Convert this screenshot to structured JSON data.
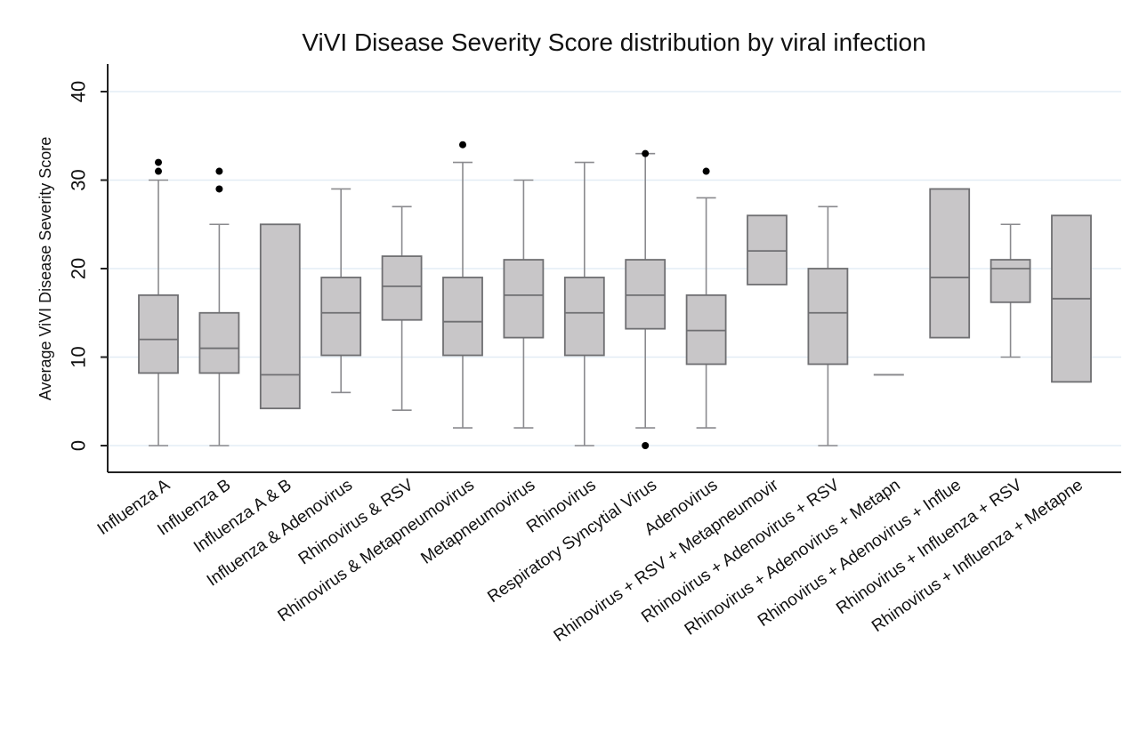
{
  "chart_data": {
    "type": "boxplot",
    "title": "ViVI Disease Severity Score distribution by viral infection",
    "xlabel": "",
    "ylabel": "Average ViVI Disease Severity Score",
    "ylim": [
      -3,
      43
    ],
    "yticks": [
      0,
      10,
      20,
      30,
      40
    ],
    "grid": true,
    "legend": "none",
    "colors": {
      "box_fill": "#c8c6c8",
      "box_stroke": "#6f6f72",
      "whisker": "#8a8a8e",
      "grid": "#e3edf5",
      "axis": "#222222",
      "outlier": "#000000"
    },
    "categories": [
      "Influenza A",
      "Influenza B",
      "Influenza A & B",
      "Influenza & Adenovirus",
      "Rhinovirus & RSV",
      "Rhinovirus & Metapneumovirus",
      "Metapneumovirus",
      "Rhinovirus",
      "Respiratory Syncytial Virus",
      "Adenovirus",
      "Rhinovirus + RSV + Metapneumovir",
      "Rhinovirus + Adenovirus + RSV",
      "Rhinovirus + Adenovirus + Metapn",
      "Rhinovirus + Adenovirus + Influe",
      "Rhinovirus + Influenza + RSV",
      "Rhinovirus + Influenza + Metapne"
    ],
    "boxes": [
      {
        "whisker_low": 0,
        "q1": 8.2,
        "median": 12,
        "q3": 17,
        "whisker_high": 30,
        "outliers": [
          31,
          32
        ]
      },
      {
        "whisker_low": 0,
        "q1": 8.2,
        "median": 11,
        "q3": 15,
        "whisker_high": 25,
        "outliers": [
          29,
          31
        ]
      },
      {
        "whisker_low": 4.2,
        "q1": 4.2,
        "median": 8,
        "q3": 25,
        "whisker_high": 25,
        "outliers": []
      },
      {
        "whisker_low": 6,
        "q1": 10.2,
        "median": 15,
        "q3": 19,
        "whisker_high": 29,
        "outliers": []
      },
      {
        "whisker_low": 4,
        "q1": 14.2,
        "median": 18,
        "q3": 21.4,
        "whisker_high": 27,
        "outliers": []
      },
      {
        "whisker_low": 2,
        "q1": 10.2,
        "median": 14,
        "q3": 19,
        "whisker_high": 32,
        "outliers": [
          34
        ]
      },
      {
        "whisker_low": 2,
        "q1": 12.2,
        "median": 17,
        "q3": 21,
        "whisker_high": 30,
        "outliers": []
      },
      {
        "whisker_low": 0,
        "q1": 10.2,
        "median": 15,
        "q3": 19,
        "whisker_high": 32,
        "outliers": []
      },
      {
        "whisker_low": 2,
        "q1": 13.2,
        "median": 17,
        "q3": 21,
        "whisker_high": 33,
        "outliers": [
          0,
          33
        ]
      },
      {
        "whisker_low": 2,
        "q1": 9.2,
        "median": 13,
        "q3": 17,
        "whisker_high": 28,
        "outliers": [
          31
        ]
      },
      {
        "whisker_low": 18.2,
        "q1": 18.2,
        "median": 22,
        "q3": 26,
        "whisker_high": 26,
        "outliers": []
      },
      {
        "whisker_low": 0,
        "q1": 9.2,
        "median": 15,
        "q3": 20,
        "whisker_high": 27,
        "outliers": []
      },
      {
        "whisker_low": 8,
        "q1": 8,
        "median": 8,
        "q3": 8,
        "whisker_high": 8,
        "outliers": []
      },
      {
        "whisker_low": 12.2,
        "q1": 12.2,
        "median": 19,
        "q3": 29,
        "whisker_high": 29,
        "outliers": []
      },
      {
        "whisker_low": 10,
        "q1": 16.2,
        "median": 20,
        "q3": 21,
        "whisker_high": 25,
        "outliers": []
      },
      {
        "whisker_low": 7.2,
        "q1": 7.2,
        "median": 16.6,
        "q3": 26,
        "whisker_high": 26,
        "outliers": []
      }
    ]
  }
}
